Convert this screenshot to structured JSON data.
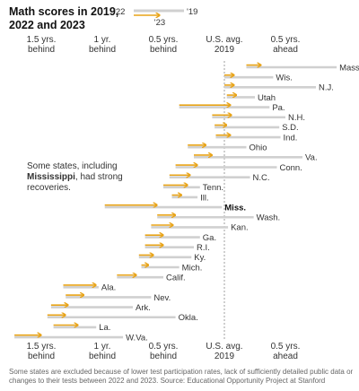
{
  "chart_data": {
    "type": "line",
    "title": [
      "Math scores in 2019,",
      "2022 and 2023"
    ],
    "legend": {
      "a": "'22",
      "b": "'19",
      "c": "'23"
    },
    "x_unit": "years of learning relative to 2019 U.S. average",
    "xlim": [
      -1.75,
      1.0
    ],
    "ticks": [
      {
        "value": -1.5,
        "lines": [
          "1.5 yrs.",
          "behind"
        ]
      },
      {
        "value": -1.0,
        "lines": [
          "1 yr.",
          "behind"
        ]
      },
      {
        "value": -0.5,
        "lines": [
          "0.5 yrs.",
          "behind"
        ]
      },
      {
        "value": 0.0,
        "lines": [
          "U.S. avg.",
          "2019"
        ]
      },
      {
        "value": 0.5,
        "lines": [
          "0.5 yrs.",
          "ahead"
        ]
      }
    ],
    "annotation": {
      "line1": "Some states, including",
      "bold": "Mississippi",
      "rest": ", had strong",
      "line3": "recoveries."
    },
    "states": [
      {
        "name": "Mass.",
        "y2019": 0.92,
        "y2022": 0.18,
        "y2023": 0.3
      },
      {
        "name": "Wis.",
        "y2019": 0.4,
        "y2022": 0.0,
        "y2023": 0.08
      },
      {
        "name": "N.J.",
        "y2019": 0.75,
        "y2022": 0.0,
        "y2023": 0.08
      },
      {
        "name": "Utah",
        "y2019": 0.25,
        "y2022": 0.02,
        "y2023": 0.1
      },
      {
        "name": "Pa.",
        "y2019": 0.37,
        "y2022": -0.37,
        "y2023": 0.05
      },
      {
        "name": "N.H.",
        "y2019": 0.5,
        "y2022": -0.1,
        "y2023": 0.06
      },
      {
        "name": "S.D.",
        "y2019": 0.45,
        "y2022": -0.08,
        "y2023": 0.02
      },
      {
        "name": "Ind.",
        "y2019": 0.46,
        "y2022": -0.07,
        "y2023": 0.05
      },
      {
        "name": "Ohio",
        "y2019": 0.18,
        "y2022": -0.3,
        "y2023": -0.15
      },
      {
        "name": "Va.",
        "y2019": 0.64,
        "y2022": -0.25,
        "y2023": -0.1
      },
      {
        "name": "Conn.",
        "y2019": 0.43,
        "y2022": -0.4,
        "y2023": -0.22
      },
      {
        "name": "N.C.",
        "y2019": 0.21,
        "y2022": -0.45,
        "y2023": -0.28
      },
      {
        "name": "Tenn.",
        "y2019": -0.2,
        "y2022": -0.5,
        "y2023": -0.3
      },
      {
        "name": "Ill.",
        "y2019": -0.22,
        "y2022": -0.43,
        "y2023": -0.35
      },
      {
        "name": "Miss.",
        "y2019": -0.02,
        "y2022": -0.98,
        "y2023": -0.55,
        "highlight": true
      },
      {
        "name": "Wash.",
        "y2019": 0.24,
        "y2022": -0.55,
        "y2023": -0.4
      },
      {
        "name": "Kan.",
        "y2019": 0.03,
        "y2022": -0.6,
        "y2023": -0.42
      },
      {
        "name": "Ga.",
        "y2019": -0.2,
        "y2022": -0.65,
        "y2023": -0.5
      },
      {
        "name": "R.I.",
        "y2019": -0.25,
        "y2022": -0.65,
        "y2023": -0.5
      },
      {
        "name": "Ky.",
        "y2019": -0.27,
        "y2022": -0.7,
        "y2023": -0.58
      },
      {
        "name": "Mich.",
        "y2019": -0.37,
        "y2022": -0.68,
        "y2023": -0.62
      },
      {
        "name": "Calif.",
        "y2019": -0.5,
        "y2022": -0.88,
        "y2023": -0.72
      },
      {
        "name": "Ala.",
        "y2019": -1.03,
        "y2022": -1.32,
        "y2023": -1.05
      },
      {
        "name": "Nev.",
        "y2019": -0.6,
        "y2022": -1.3,
        "y2023": -1.15
      },
      {
        "name": "Ark.",
        "y2019": -0.75,
        "y2022": -1.42,
        "y2023": -1.28
      },
      {
        "name": "Okla.",
        "y2019": -0.4,
        "y2022": -1.45,
        "y2023": -1.3
      },
      {
        "name": "La.",
        "y2019": -1.05,
        "y2022": -1.4,
        "y2023": -1.2
      },
      {
        "name": "W.Va.",
        "y2019": -0.83,
        "y2022": -1.72,
        "y2023": -1.5
      }
    ],
    "colors": {
      "bar2019": "#d0d0d0",
      "change": "#e8a317",
      "avgline": "#888888"
    }
  },
  "footnote": "Some states are excluded because of lower test participation rates, lack of sufficiently detailed public data or changes to their tests between 2022 and 2023. Source: Educational Opportunity Project at Stanford"
}
